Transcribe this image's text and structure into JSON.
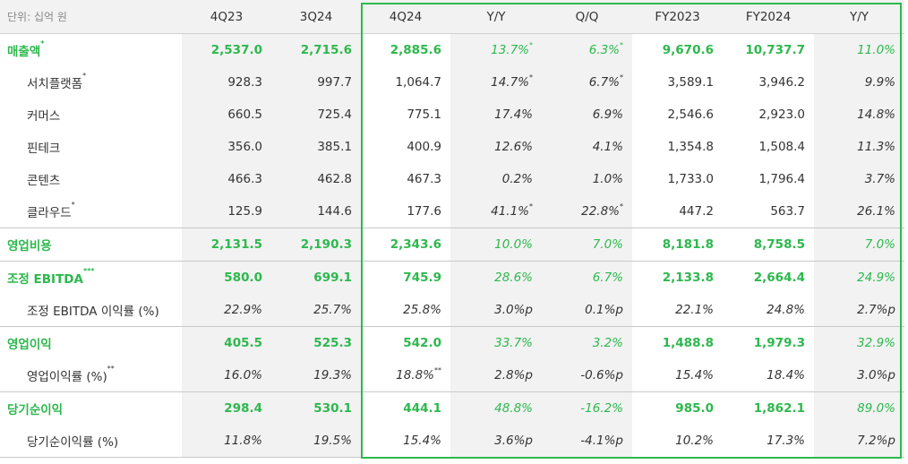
{
  "unit_label": "단위: 십억 원",
  "columns": [
    "4Q23",
    "3Q24",
    "4Q24",
    "Y/Y",
    "Q/Q",
    "FY2023",
    "FY2024",
    "Y/Y"
  ],
  "colors": {
    "accent_green": "#2db84d",
    "shade": "#f2f2f2",
    "text": "#333333"
  },
  "rows": [
    {
      "label": "매출액",
      "sup": "*",
      "cells": [
        "2,537.0",
        "2,715.6",
        "2,885.6",
        "13.7%",
        "6.3%",
        "9,670.6",
        "10,737.7",
        "11.0%"
      ],
      "cell_sups": [
        "",
        "",
        "",
        "*",
        "*",
        "",
        "",
        ""
      ]
    },
    {
      "label": "서치플랫폼",
      "sup": "*",
      "cells": [
        "928.3",
        "997.7",
        "1,064.7",
        "14.7%",
        "6.7%",
        "3,589.1",
        "3,946.2",
        "9.9%"
      ],
      "cell_sups": [
        "",
        "",
        "",
        "*",
        "*",
        "",
        "",
        ""
      ]
    },
    {
      "label": "커머스",
      "sup": "",
      "cells": [
        "660.5",
        "725.4",
        "775.1",
        "17.4%",
        "6.9%",
        "2,546.6",
        "2,923.0",
        "14.8%"
      ],
      "cell_sups": [
        "",
        "",
        "",
        "",
        "",
        "",
        "",
        ""
      ]
    },
    {
      "label": "핀테크",
      "sup": "",
      "cells": [
        "356.0",
        "385.1",
        "400.9",
        "12.6%",
        "4.1%",
        "1,354.8",
        "1,508.4",
        "11.3%"
      ],
      "cell_sups": [
        "",
        "",
        "",
        "",
        "",
        "",
        "",
        ""
      ]
    },
    {
      "label": "콘텐츠",
      "sup": "",
      "cells": [
        "466.3",
        "462.8",
        "467.3",
        "0.2%",
        "1.0%",
        "1,733.0",
        "1,796.4",
        "3.7%"
      ],
      "cell_sups": [
        "",
        "",
        "",
        "",
        "",
        "",
        "",
        ""
      ]
    },
    {
      "label": "클라우드",
      "sup": "*",
      "cells": [
        "125.9",
        "144.6",
        "177.6",
        "41.1%",
        "22.8%",
        "447.2",
        "563.7",
        "26.1%"
      ],
      "cell_sups": [
        "",
        "",
        "",
        "*",
        "*",
        "",
        "",
        ""
      ]
    },
    {
      "label": "영업비용",
      "sup": "",
      "cells": [
        "2,131.5",
        "2,190.3",
        "2,343.6",
        "10.0%",
        "7.0%",
        "8,181.8",
        "8,758.5",
        "7.0%"
      ],
      "cell_sups": [
        "",
        "",
        "",
        "",
        "",
        "",
        "",
        ""
      ]
    },
    {
      "label": "조정 EBITDA",
      "sup": "***",
      "cells": [
        "580.0",
        "699.1",
        "745.9",
        "28.6%",
        "6.7%",
        "2,133.8",
        "2,664.4",
        "24.9%"
      ],
      "cell_sups": [
        "",
        "",
        "",
        "",
        "",
        "",
        "",
        ""
      ]
    },
    {
      "label": "조정 EBITDA 이익률 (%)",
      "sup": "",
      "cells": [
        "22.9%",
        "25.7%",
        "25.8%",
        "3.0%p",
        "0.1%p",
        "22.1%",
        "24.8%",
        "2.7%p"
      ],
      "cell_sups": [
        "",
        "",
        "",
        "",
        "",
        "",
        "",
        ""
      ]
    },
    {
      "label": "영업이익",
      "sup": "",
      "cells": [
        "405.5",
        "525.3",
        "542.0",
        "33.7%",
        "3.2%",
        "1,488.8",
        "1,979.3",
        "32.9%"
      ],
      "cell_sups": [
        "",
        "",
        "",
        "",
        "",
        "",
        "",
        ""
      ]
    },
    {
      "label": "영업이익률 (%)",
      "sup": "**",
      "cells": [
        "16.0%",
        "19.3%",
        "18.8%",
        "2.8%p",
        "-0.6%p",
        "15.4%",
        "18.4%",
        "3.0%p"
      ],
      "cell_sups": [
        "",
        "",
        "**",
        "",
        "",
        "",
        "",
        ""
      ]
    },
    {
      "label": "당기순이익",
      "sup": "",
      "cells": [
        "298.4",
        "530.1",
        "444.1",
        "48.8%",
        "-16.2%",
        "985.0",
        "1,862.1",
        "89.0%"
      ],
      "cell_sups": [
        "",
        "",
        "",
        "",
        "",
        "",
        "",
        ""
      ]
    },
    {
      "label": "당기순이익률 (%)",
      "sup": "",
      "cells": [
        "11.8%",
        "19.5%",
        "15.4%",
        "3.6%p",
        "-4.1%p",
        "10.2%",
        "17.3%",
        "7.2%p"
      ],
      "cell_sups": [
        "",
        "",
        "",
        "",
        "",
        "",
        "",
        ""
      ]
    }
  ]
}
